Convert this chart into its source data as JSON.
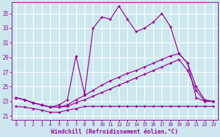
{
  "bg_color": "#cce8ee",
  "grid_color": "#aacccc",
  "line_color": "#990099",
  "xlabel": "Windchill (Refroidissement éolien,°C)",
  "xlim": [
    -0.5,
    23.5
  ],
  "ylim": [
    20.5,
    36.5
  ],
  "yticks": [
    21,
    23,
    25,
    27,
    29,
    31,
    33,
    35
  ],
  "xticks": [
    0,
    1,
    2,
    3,
    4,
    5,
    6,
    7,
    8,
    9,
    10,
    11,
    12,
    13,
    14,
    15,
    16,
    17,
    18,
    19,
    20,
    21,
    22,
    23
  ],
  "series1_x": [
    0,
    1,
    2,
    3,
    4,
    5,
    6,
    7,
    8,
    9,
    10,
    11,
    12,
    13,
    14,
    15,
    16,
    17,
    18,
    19,
    20,
    21,
    22,
    23
  ],
  "series1_y": [
    23.5,
    23.2,
    22.8,
    22.5,
    22.2,
    22.5,
    23.2,
    29.2,
    24.0,
    33.0,
    34.5,
    34.2,
    36.0,
    34.2,
    32.5,
    33.0,
    33.8,
    35.0,
    33.2,
    29.5,
    28.2,
    23.5,
    23.0,
    23.0
  ],
  "series2_x": [
    0,
    1,
    2,
    3,
    4,
    5,
    6,
    7,
    8,
    9,
    10,
    11,
    12,
    13,
    14,
    15,
    16,
    17,
    18,
    19,
    20,
    21,
    22,
    23
  ],
  "series2_y": [
    23.5,
    23.2,
    22.8,
    22.5,
    22.2,
    22.2,
    22.5,
    23.2,
    23.8,
    24.5,
    25.2,
    25.8,
    26.3,
    26.8,
    27.2,
    27.7,
    28.2,
    28.7,
    29.2,
    29.5,
    28.2,
    25.0,
    23.2,
    23.0
  ],
  "series3_x": [
    0,
    1,
    2,
    3,
    4,
    5,
    6,
    7,
    8,
    9,
    10,
    11,
    12,
    13,
    14,
    15,
    16,
    17,
    18,
    19,
    20,
    21,
    22,
    23
  ],
  "series3_y": [
    23.5,
    23.2,
    22.8,
    22.5,
    22.2,
    22.2,
    22.3,
    22.8,
    23.2,
    23.7,
    24.2,
    24.7,
    25.2,
    25.7,
    26.2,
    26.7,
    27.2,
    27.7,
    28.2,
    28.7,
    27.2,
    24.5,
    23.0,
    23.0
  ],
  "series4_x": [
    0,
    1,
    2,
    3,
    4,
    5,
    6,
    7,
    8,
    9,
    10,
    11,
    12,
    13,
    14,
    15,
    16,
    17,
    18,
    19,
    20,
    21,
    22,
    23
  ],
  "series4_y": [
    22.3,
    22.2,
    22.0,
    21.8,
    21.5,
    21.5,
    21.8,
    22.0,
    22.3,
    22.3,
    22.3,
    22.3,
    22.3,
    22.3,
    22.3,
    22.3,
    22.3,
    22.3,
    22.3,
    22.3,
    22.3,
    22.3,
    22.3,
    22.3
  ]
}
